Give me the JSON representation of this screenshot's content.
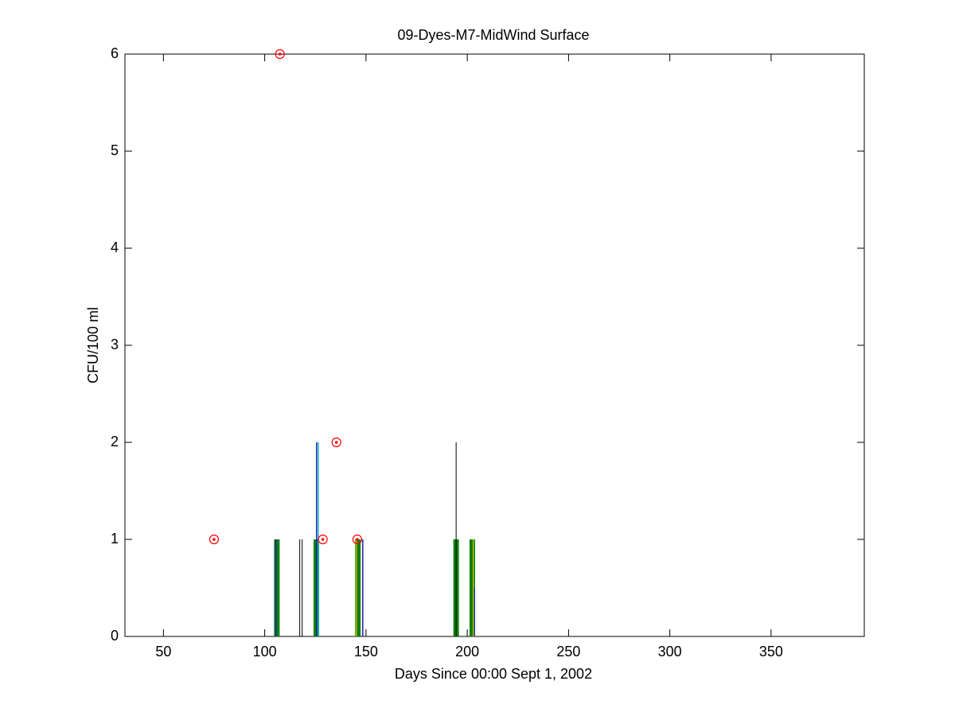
{
  "chart_data": {
    "type": "stem",
    "title": "09-Dyes-M7-MidWind Surface",
    "x_label": "Days Since 00:00 Sept 1, 2002",
    "y_label": "CFU/100 ml",
    "xlim": [
      31,
      396
    ],
    "ylim": [
      0,
      6
    ],
    "xticks": [
      50,
      100,
      150,
      200,
      250,
      300,
      350
    ],
    "yticks": [
      0,
      1,
      2,
      3,
      4,
      5,
      6
    ],
    "grid": false,
    "series": [
      {
        "type": "stem",
        "color": "#0f7f0f",
        "line_width": 7,
        "x": [
          106,
          125.5,
          146,
          194.5,
          202.5
        ],
        "values": [
          1,
          1,
          1,
          1,
          1
        ]
      },
      {
        "type": "stem",
        "color": "#000000",
        "line_width": 1,
        "x": [
          117.3,
          118.5,
          194.5
        ],
        "values": [
          1,
          1,
          2
        ]
      },
      {
        "type": "stem",
        "color": "#1f1fb0",
        "line_width": 1.5,
        "x": [
          105.5,
          125.6,
          148.4,
          203.5
        ],
        "values": [
          1,
          2,
          1,
          0.5
        ]
      },
      {
        "type": "stem",
        "color": "#00bfbf",
        "line_width": 1.5,
        "x": [
          126.4
        ],
        "values": [
          2
        ]
      },
      {
        "type": "stem",
        "color": "#bfbf00",
        "line_width": 1.5,
        "x": [
          145.2,
          203
        ],
        "values": [
          1,
          1
        ]
      },
      {
        "type": "scatter",
        "color": "#ff0000",
        "x": [
          75,
          107.5,
          128.7,
          135.4,
          145.7
        ],
        "values": [
          1,
          6,
          1,
          2,
          1
        ]
      }
    ]
  }
}
